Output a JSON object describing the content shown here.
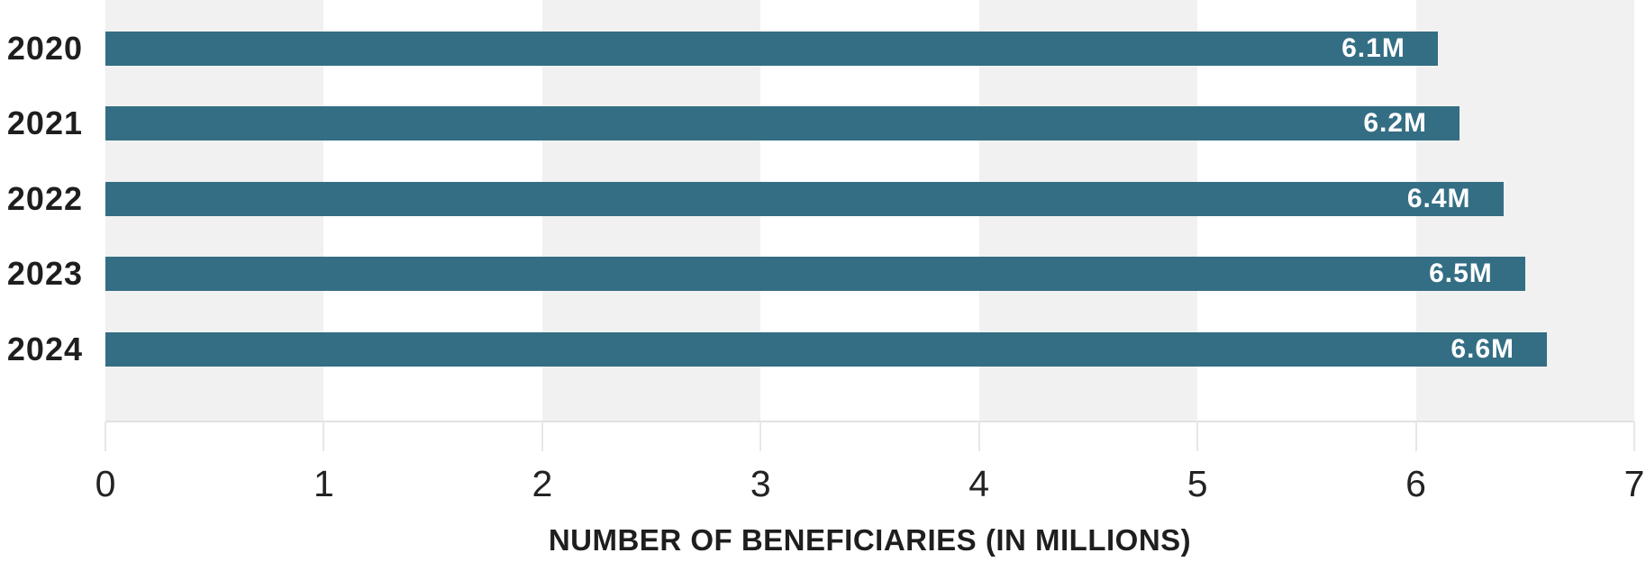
{
  "chart_data": {
    "type": "bar",
    "orientation": "horizontal",
    "xlabel": "NUMBER OF BENEFICIARIES (IN MILLIONS)",
    "categories": [
      "2020",
      "2021",
      "2022",
      "2023",
      "2024"
    ],
    "values": [
      6.1,
      6.2,
      6.4,
      6.5,
      6.6
    ],
    "value_labels": [
      "6.1M",
      "6.2M",
      "6.4M",
      "6.5M",
      "6.6M"
    ],
    "x_ticks": [
      "0",
      "1",
      "2",
      "3",
      "4",
      "5",
      "6",
      "7"
    ],
    "xlim": [
      0,
      7
    ],
    "grid": "alternating-vertical-bands",
    "legend": "none",
    "colors": {
      "bar": "#346e84",
      "bar_label_text": "#ffffff",
      "band_shade": "#f1f1f1",
      "band_light": "#ffffff",
      "axis_line": "#e2e2e2",
      "tick_mark": "#e7e7e7",
      "text": "#1e1e1e"
    }
  }
}
